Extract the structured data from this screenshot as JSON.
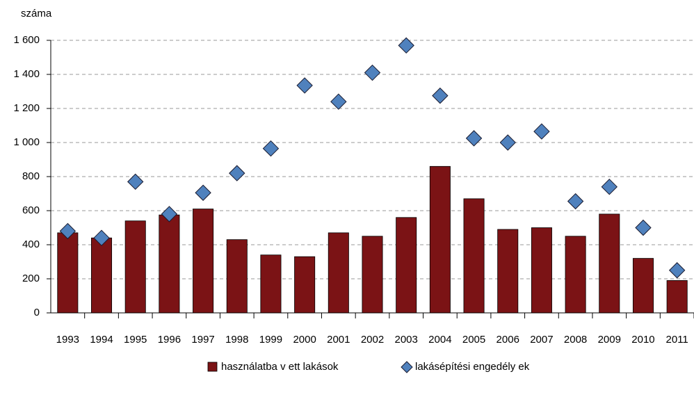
{
  "chart_data": {
    "type": "bar_scatter",
    "y_label": "száma",
    "categories": [
      "1993",
      "1994",
      "1995",
      "1996",
      "1997",
      "1998",
      "1999",
      "2000",
      "2001",
      "2002",
      "2003",
      "2004",
      "2005",
      "2006",
      "2007",
      "2008",
      "2009",
      "2010",
      "2011"
    ],
    "series": [
      {
        "name": "használatba v ett lakások",
        "type": "bar",
        "color": "#7b1315",
        "values": [
          470,
          440,
          540,
          575,
          610,
          430,
          340,
          330,
          470,
          450,
          560,
          860,
          670,
          490,
          500,
          450,
          580,
          320,
          190
        ]
      },
      {
        "name": "lakásépítési engedély ek",
        "type": "scatter",
        "color": "#4f81bd",
        "values": [
          480,
          440,
          770,
          580,
          705,
          820,
          965,
          1335,
          1240,
          1410,
          1570,
          1275,
          1025,
          1000,
          1065,
          655,
          740,
          500,
          250
        ]
      }
    ],
    "ylim": [
      0,
      1600
    ],
    "yticks": [
      0,
      200,
      400,
      600,
      800,
      {
        "value": 1000,
        "label": "1 000"
      },
      {
        "value": 1200,
        "label": "1 200"
      },
      {
        "value": 1400,
        "label": "1 400"
      },
      {
        "value": 1600,
        "label": "1 600"
      }
    ],
    "grid": true,
    "legend": "bottom"
  }
}
